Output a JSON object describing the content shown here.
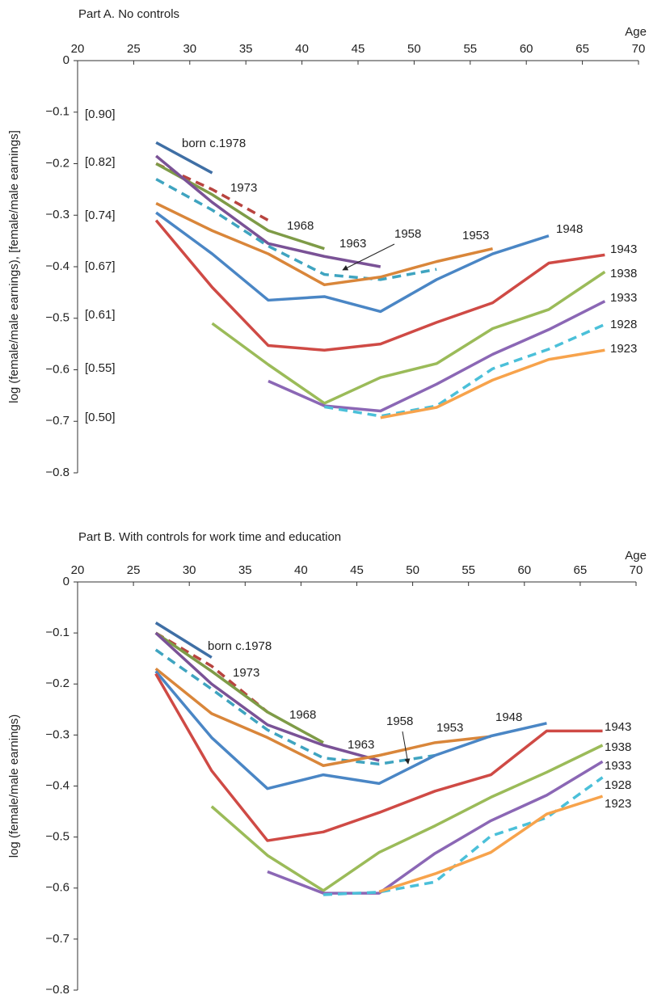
{
  "chart_data": [
    {
      "type": "line",
      "title": "Part A. No controls",
      "x_label": "Age",
      "y_label": "log (female/male earnings), [female/male earnings]",
      "x": [
        27,
        32,
        37,
        42,
        47,
        52,
        57,
        62,
        67
      ],
      "xlim": [
        20,
        70
      ],
      "xticks": [
        20,
        25,
        30,
        35,
        40,
        45,
        50,
        55,
        60,
        65,
        70
      ],
      "ylim": [
        -0.8,
        0
      ],
      "yticks": [
        0,
        {
          "value": -0.1,
          "label": "−0.1"
        },
        {
          "value": -0.2,
          "label": "−0.2"
        },
        {
          "value": -0.3,
          "label": "−0.3"
        },
        {
          "value": -0.4,
          "label": "−0.4"
        },
        {
          "value": -0.5,
          "label": "−0.5"
        },
        {
          "value": -0.6,
          "label": "−0.6"
        },
        {
          "value": -0.7,
          "label": "−0.7"
        },
        {
          "value": -0.8,
          "label": "−0.8"
        }
      ],
      "ratio_ticks": [
        {
          "value": -0.105,
          "label": "[0.90]"
        },
        {
          "value": -0.198,
          "label": "[0.82]"
        },
        {
          "value": -0.301,
          "label": "[0.74]"
        },
        {
          "value": -0.4,
          "label": "[0.67]"
        },
        {
          "value": -0.494,
          "label": "[0.61]"
        },
        {
          "value": -0.598,
          "label": "[0.55]"
        },
        {
          "value": -0.693,
          "label": "[0.50]"
        }
      ],
      "series": [
        {
          "name": "born c.1978",
          "color": "#3f6fa5",
          "dashed": false,
          "values": [
            -0.159,
            -0.218,
            null,
            null,
            null,
            null,
            null,
            null,
            null
          ]
        },
        {
          "name": "1973",
          "color": "#b8443f",
          "dashed": true,
          "values": [
            -0.2,
            -0.25,
            -0.31,
            null,
            null,
            null,
            null,
            null,
            null
          ]
        },
        {
          "name": "1968",
          "color": "#7e9b47",
          "dashed": false,
          "values": [
            -0.2,
            -0.26,
            -0.33,
            -0.365,
            null,
            null,
            null,
            null,
            null
          ]
        },
        {
          "name": "1963",
          "color": "#7a5296",
          "dashed": false,
          "values": [
            -0.185,
            -0.275,
            -0.355,
            -0.38,
            -0.4,
            null,
            null,
            null,
            null
          ]
        },
        {
          "name": "1958",
          "color": "#3fa4c0",
          "dashed": true,
          "values": [
            -0.23,
            -0.29,
            -0.36,
            -0.415,
            -0.425,
            -0.405,
            null,
            null,
            null
          ]
        },
        {
          "name": "1953",
          "color": "#d9863a",
          "dashed": false,
          "values": [
            -0.277,
            -0.33,
            -0.375,
            -0.435,
            -0.42,
            -0.39,
            -0.365,
            null,
            null
          ]
        },
        {
          "name": "1948",
          "color": "#4a86c5",
          "dashed": false,
          "values": [
            -0.295,
            -0.375,
            -0.465,
            -0.458,
            -0.487,
            -0.425,
            -0.375,
            -0.34,
            null
          ]
        },
        {
          "name": "1943",
          "color": "#cf4a45",
          "dashed": false,
          "values": [
            -0.31,
            -0.44,
            -0.553,
            -0.562,
            -0.55,
            -0.508,
            -0.47,
            -0.393,
            -0.377
          ]
        },
        {
          "name": "1938",
          "color": "#9bbb59",
          "dashed": false,
          "values": [
            null,
            -0.51,
            -0.59,
            -0.665,
            -0.615,
            -0.588,
            -0.52,
            -0.483,
            -0.41
          ]
        },
        {
          "name": "1933",
          "color": "#8b67b5",
          "dashed": false,
          "values": [
            null,
            null,
            -0.622,
            -0.67,
            -0.68,
            -0.628,
            -0.57,
            -0.522,
            -0.467
          ]
        },
        {
          "name": "1928",
          "color": "#4bc0d9",
          "dashed": true,
          "values": [
            null,
            null,
            null,
            -0.672,
            -0.69,
            -0.67,
            -0.598,
            -0.56,
            -0.512
          ]
        },
        {
          "name": "1923",
          "color": "#f7a34c",
          "dashed": false,
          "values": [
            null,
            null,
            null,
            null,
            -0.693,
            -0.673,
            -0.62,
            -0.58,
            -0.562
          ]
        }
      ]
    },
    {
      "type": "line",
      "title": "Part B. With controls for work time and education",
      "x_label": "Age",
      "y_label": "log (female/male earnings)",
      "x": [
        27,
        32,
        37,
        42,
        47,
        52,
        57,
        62,
        67
      ],
      "xlim": [
        20,
        70
      ],
      "xticks": [
        20,
        25,
        30,
        35,
        40,
        45,
        50,
        55,
        60,
        65,
        70
      ],
      "ylim": [
        -0.8,
        0
      ],
      "yticks": [
        0,
        {
          "value": -0.1,
          "label": "−0.1"
        },
        {
          "value": -0.2,
          "label": "−0.2"
        },
        {
          "value": -0.3,
          "label": "−0.3"
        },
        {
          "value": -0.4,
          "label": "−0.4"
        },
        {
          "value": -0.5,
          "label": "−0.5"
        },
        {
          "value": -0.6,
          "label": "−0.6"
        },
        {
          "value": -0.7,
          "label": "−0.7"
        },
        {
          "value": -0.8,
          "label": "−0.8"
        }
      ],
      "series": [
        {
          "name": "born c.1978",
          "color": "#3f6fa5",
          "dashed": false,
          "values": [
            -0.08,
            -0.148,
            null,
            null,
            null,
            null,
            null,
            null,
            null
          ]
        },
        {
          "name": "1973",
          "color": "#b8443f",
          "dashed": true,
          "values": [
            -0.1,
            -0.165,
            -0.255,
            null,
            null,
            null,
            null,
            null,
            null
          ]
        },
        {
          "name": "1968",
          "color": "#7e9b47",
          "dashed": false,
          "values": [
            -0.1,
            -0.175,
            -0.255,
            -0.315,
            null,
            null,
            null,
            null,
            null
          ]
        },
        {
          "name": "1963",
          "color": "#7a5296",
          "dashed": false,
          "values": [
            -0.1,
            -0.2,
            -0.28,
            -0.32,
            -0.35,
            null,
            null,
            null,
            null
          ]
        },
        {
          "name": "1958",
          "color": "#3fa4c0",
          "dashed": true,
          "values": [
            -0.133,
            -0.21,
            -0.29,
            -0.345,
            -0.357,
            -0.34,
            null,
            null,
            null
          ]
        },
        {
          "name": "1953",
          "color": "#d9863a",
          "dashed": false,
          "values": [
            -0.17,
            -0.258,
            -0.305,
            -0.36,
            -0.34,
            -0.315,
            -0.303,
            null,
            null
          ]
        },
        {
          "name": "1948",
          "color": "#4a86c5",
          "dashed": false,
          "values": [
            -0.175,
            -0.305,
            -0.405,
            -0.378,
            -0.395,
            -0.34,
            -0.302,
            -0.277,
            null
          ]
        },
        {
          "name": "1943",
          "color": "#cf4a45",
          "dashed": false,
          "values": [
            -0.18,
            -0.37,
            -0.507,
            -0.49,
            -0.452,
            -0.41,
            -0.378,
            -0.292,
            -0.292
          ]
        },
        {
          "name": "1938",
          "color": "#9bbb59",
          "dashed": false,
          "values": [
            null,
            -0.44,
            -0.536,
            -0.605,
            -0.53,
            -0.478,
            -0.422,
            -0.373,
            -0.32
          ]
        },
        {
          "name": "1933",
          "color": "#8b67b5",
          "dashed": false,
          "values": [
            null,
            null,
            -0.568,
            -0.61,
            -0.61,
            -0.532,
            -0.468,
            -0.418,
            -0.352
          ]
        },
        {
          "name": "1928",
          "color": "#4bc0d9",
          "dashed": true,
          "values": [
            null,
            null,
            null,
            -0.613,
            -0.608,
            -0.588,
            -0.498,
            -0.462,
            -0.383
          ]
        },
        {
          "name": "1923",
          "color": "#f7a34c",
          "dashed": false,
          "values": [
            null,
            null,
            null,
            null,
            -0.607,
            -0.572,
            -0.53,
            -0.455,
            -0.42
          ]
        }
      ]
    }
  ]
}
